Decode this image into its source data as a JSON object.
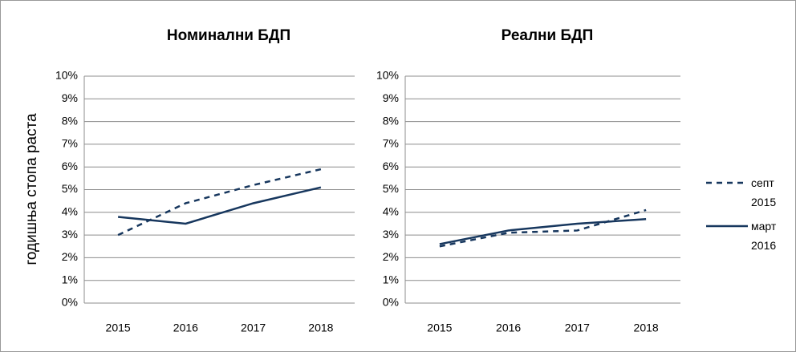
{
  "chart_data": [
    {
      "type": "line",
      "title": "Номинални БДП",
      "y_label": "годишња стопа раста",
      "categories": [
        "2015",
        "2016",
        "2017",
        "2018"
      ],
      "series": [
        {
          "name": "септ 2015",
          "color": "#17375e",
          "dash": true,
          "values": [
            3.0,
            4.4,
            5.2,
            5.9
          ]
        },
        {
          "name": "март 2016",
          "color": "#17375e",
          "dash": false,
          "values": [
            3.8,
            3.5,
            4.4,
            5.1
          ]
        }
      ],
      "ylim": [
        0,
        10
      ],
      "yticks": [
        {
          "value": 0,
          "label": "0%"
        },
        {
          "value": 1,
          "label": "1%"
        },
        {
          "value": 2,
          "label": "2%"
        },
        {
          "value": 3,
          "label": "3%"
        },
        {
          "value": 4,
          "label": "4%"
        },
        {
          "value": 5,
          "label": "5%"
        },
        {
          "value": 6,
          "label": "6%"
        },
        {
          "value": 7,
          "label": "7%"
        },
        {
          "value": 8,
          "label": "8%"
        },
        {
          "value": 9,
          "label": "9%"
        },
        {
          "value": 10,
          "label": "10%"
        }
      ],
      "grid": true
    },
    {
      "type": "line",
      "title": "Реални БДП",
      "categories": [
        "2015",
        "2016",
        "2017",
        "2018"
      ],
      "series": [
        {
          "color": "#17375e",
          "dash": true,
          "values": [
            2.5,
            3.1,
            3.2,
            4.1
          ]
        },
        {
          "color": "#17375e",
          "dash": false,
          "values": [
            2.6,
            3.2,
            3.5,
            3.7
          ]
        }
      ],
      "ylim": [
        0,
        10
      ],
      "yticks": [
        {
          "value": 0,
          "label": "0%"
        },
        {
          "value": 1,
          "label": "1%"
        },
        {
          "value": 2,
          "label": "2%"
        },
        {
          "value": 3,
          "label": "3%"
        },
        {
          "value": 4,
          "label": "4%"
        },
        {
          "value": 5,
          "label": "5%"
        },
        {
          "value": 6,
          "label": "6%"
        },
        {
          "value": 7,
          "label": "7%"
        },
        {
          "value": 8,
          "label": "8%"
        },
        {
          "value": 9,
          "label": "9%"
        },
        {
          "value": 10,
          "label": "10%"
        }
      ],
      "grid": true
    }
  ]
}
